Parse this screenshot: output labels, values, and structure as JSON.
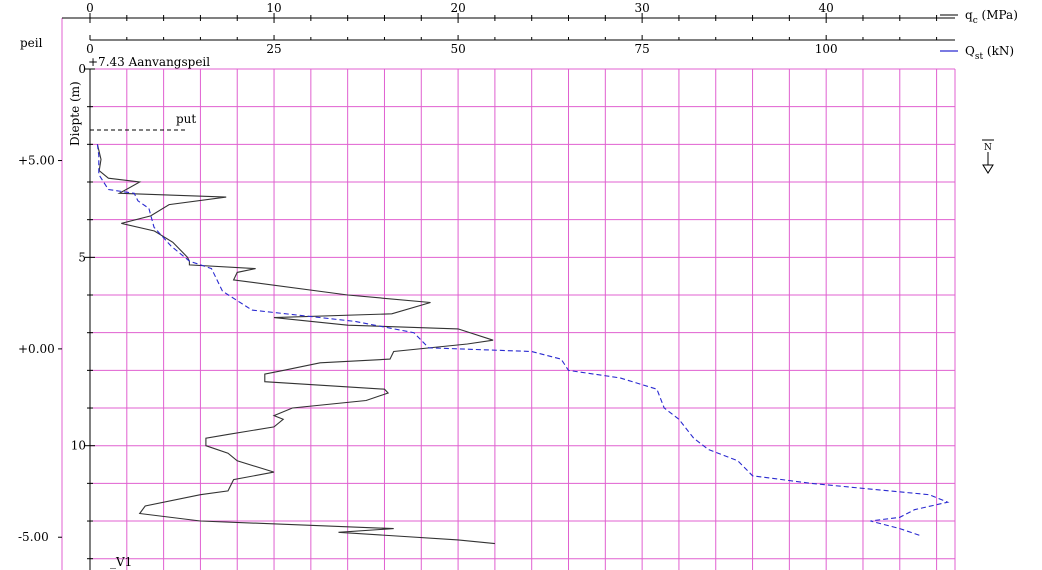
{
  "chart_data": {
    "type": "line",
    "title": "",
    "depth_axis_label": "Diepte (m)",
    "peil_axis_label": "peil",
    "start_level_label": "+7.43 Aanvangspeil",
    "put_label": "put",
    "vane_label": "_V1",
    "water_symbol_label": "N",
    "qc_axis": {
      "unit": "MPa",
      "range": [
        0,
        47
      ],
      "ticks": [
        "0",
        "10",
        "20",
        "30",
        "40"
      ]
    },
    "qst_axis": {
      "unit": "kN",
      "range": [
        0,
        117.5
      ],
      "ticks": [
        "0",
        "25",
        "50",
        "75",
        "100"
      ]
    },
    "depth_axis": {
      "range": [
        0,
        13.3
      ],
      "ticks": [
        "0",
        "5",
        "10"
      ]
    },
    "peil_ticks": [
      "+5.00",
      "+0.00",
      "-5.00"
    ],
    "grid": true,
    "legend": [
      {
        "label": "q",
        "sub": "c",
        "unit": " (MPa)",
        "color": "#333333",
        "dash": ""
      },
      {
        "label": "Q",
        "sub": "st",
        "unit": " (kN)",
        "color": "#2a2ad0",
        "dash": ""
      }
    ],
    "series": [
      {
        "name": "qc (MPa)",
        "color": "#333333",
        "dash": "",
        "axis": "qc",
        "points": [
          [
            0.4,
            2.0
          ],
          [
            0.6,
            2.4
          ],
          [
            0.5,
            2.7
          ],
          [
            1.0,
            2.9
          ],
          [
            2.7,
            3.0
          ],
          [
            1.6,
            3.3
          ],
          [
            7.4,
            3.4
          ],
          [
            4.3,
            3.6
          ],
          [
            3.3,
            3.9
          ],
          [
            1.7,
            4.1
          ],
          [
            3.5,
            4.3
          ],
          [
            4.5,
            4.6
          ],
          [
            5.3,
            5.0
          ],
          [
            5.4,
            5.1
          ],
          [
            5.4,
            5.2
          ],
          [
            9.0,
            5.3
          ],
          [
            8.0,
            5.4
          ],
          [
            7.8,
            5.6
          ],
          [
            14.0,
            6.0
          ],
          [
            18.5,
            6.2
          ],
          [
            16.4,
            6.5
          ],
          [
            10.0,
            6.6
          ],
          [
            14.0,
            6.8
          ],
          [
            20.0,
            6.9
          ],
          [
            21.9,
            7.2
          ],
          [
            20.5,
            7.3
          ],
          [
            16.5,
            7.5
          ],
          [
            16.3,
            7.7
          ],
          [
            12.5,
            7.8
          ],
          [
            10.5,
            8.0
          ],
          [
            9.5,
            8.1
          ],
          [
            9.5,
            8.3
          ],
          [
            16.0,
            8.5
          ],
          [
            16.2,
            8.6
          ],
          [
            15.0,
            8.8
          ],
          [
            11.0,
            9.0
          ],
          [
            10.0,
            9.2
          ],
          [
            10.5,
            9.3
          ],
          [
            10.0,
            9.5
          ],
          [
            7.5,
            9.7
          ],
          [
            6.3,
            9.8
          ],
          [
            6.3,
            10.0
          ],
          [
            7.5,
            10.2
          ],
          [
            8.0,
            10.4
          ],
          [
            10.0,
            10.7
          ],
          [
            7.8,
            10.9
          ],
          [
            7.5,
            11.2
          ],
          [
            6.0,
            11.3
          ],
          [
            3.0,
            11.6
          ],
          [
            2.7,
            11.8
          ],
          [
            6.0,
            12.0
          ],
          [
            16.5,
            12.2
          ],
          [
            13.5,
            12.3
          ],
          [
            20.0,
            12.5
          ],
          [
            22.0,
            12.6
          ]
        ]
      },
      {
        "name": "Qst (kN)",
        "color": "#2a2ad0",
        "dash": "5,3",
        "axis": "qst",
        "points": [
          [
            1.0,
            2.0
          ],
          [
            1.2,
            2.3
          ],
          [
            1.2,
            2.8
          ],
          [
            2.5,
            3.2
          ],
          [
            6.0,
            3.3
          ],
          [
            6.5,
            3.5
          ],
          [
            8.0,
            3.7
          ],
          [
            8.7,
            4.2
          ],
          [
            11.0,
            4.7
          ],
          [
            13.5,
            5.1
          ],
          [
            16.5,
            5.3
          ],
          [
            18.0,
            5.9
          ],
          [
            22.0,
            6.4
          ],
          [
            36.0,
            6.7
          ],
          [
            44.0,
            7.0
          ],
          [
            46.0,
            7.4
          ],
          [
            60.0,
            7.5
          ],
          [
            64.0,
            7.7
          ],
          [
            65.0,
            8.0
          ],
          [
            72.0,
            8.2
          ],
          [
            77.0,
            8.5
          ],
          [
            78.0,
            9.0
          ],
          [
            80.0,
            9.3
          ],
          [
            82.0,
            9.8
          ],
          [
            84.0,
            10.1
          ],
          [
            88.0,
            10.4
          ],
          [
            90.0,
            10.8
          ],
          [
            98.0,
            11.0
          ],
          [
            114.0,
            11.3
          ],
          [
            116.5,
            11.5
          ],
          [
            112.0,
            11.7
          ],
          [
            110.0,
            11.9
          ],
          [
            106.0,
            12.0
          ],
          [
            110.0,
            12.2
          ],
          [
            113.0,
            12.4
          ]
        ]
      }
    ]
  }
}
